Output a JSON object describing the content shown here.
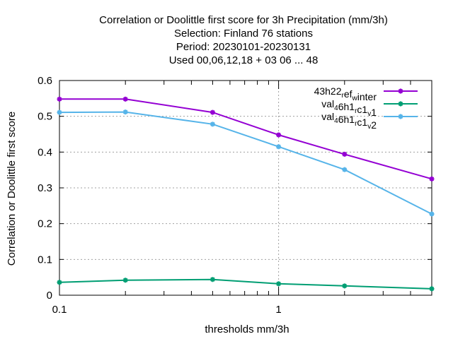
{
  "chart_data": {
    "type": "line",
    "title_lines": [
      "Correlation or Doolittle first score  for 3h Precipitation (mm/3h)",
      "Selection: Finland     76 stations",
      "Period: 20230101-20230131",
      "Used  00,06,12,18  + 03 06 ... 48"
    ],
    "xlabel": "thresholds mm/3h",
    "ylabel": "Correlation or Doolittle first score",
    "x_scale": "log",
    "xlim": [
      0.1,
      5
    ],
    "ylim": [
      0,
      0.6
    ],
    "x_ticks": [
      {
        "value": 0.1,
        "label": "0.1"
      },
      {
        "value": 1,
        "label": "1"
      }
    ],
    "y_ticks": [
      {
        "value": 0,
        "label": "0"
      },
      {
        "value": 0.1,
        "label": "0.1"
      },
      {
        "value": 0.2,
        "label": "0.2"
      },
      {
        "value": 0.3,
        "label": "0.3"
      },
      {
        "value": 0.4,
        "label": "0.4"
      },
      {
        "value": 0.5,
        "label": "0.5"
      },
      {
        "value": 0.6,
        "label": "0.6"
      }
    ],
    "x": [
      0.1,
      0.2,
      0.5,
      1,
      2,
      5
    ],
    "series": [
      {
        "legend": [
          {
            "t": "43h22"
          },
          {
            "t": "r",
            "sub": true
          },
          {
            "t": "ef"
          },
          {
            "t": "w",
            "sub": true
          },
          {
            "t": "inter"
          }
        ],
        "color": "#9400d3",
        "values": [
          0.548,
          0.548,
          0.511,
          0.448,
          0.394,
          0.325
        ]
      },
      {
        "legend": [
          {
            "t": "val"
          },
          {
            "t": "4",
            "sub": true
          },
          {
            "t": "6h1"
          },
          {
            "t": "r",
            "sub": true
          },
          {
            "t": "c1"
          },
          {
            "t": "v",
            "sub": true
          },
          {
            "t": "1"
          }
        ],
        "color": "#009e73",
        "values": [
          0.036,
          0.042,
          0.044,
          0.032,
          0.026,
          0.018
        ]
      },
      {
        "legend": [
          {
            "t": "val"
          },
          {
            "t": "4",
            "sub": true
          },
          {
            "t": "6h1"
          },
          {
            "t": "r",
            "sub": true
          },
          {
            "t": "c1"
          },
          {
            "t": "v",
            "sub": true
          },
          {
            "t": "2"
          }
        ],
        "color": "#56b4e9",
        "values": [
          0.511,
          0.512,
          0.478,
          0.415,
          0.351,
          0.227
        ]
      }
    ],
    "grid": true,
    "legend_position": "top-right"
  }
}
